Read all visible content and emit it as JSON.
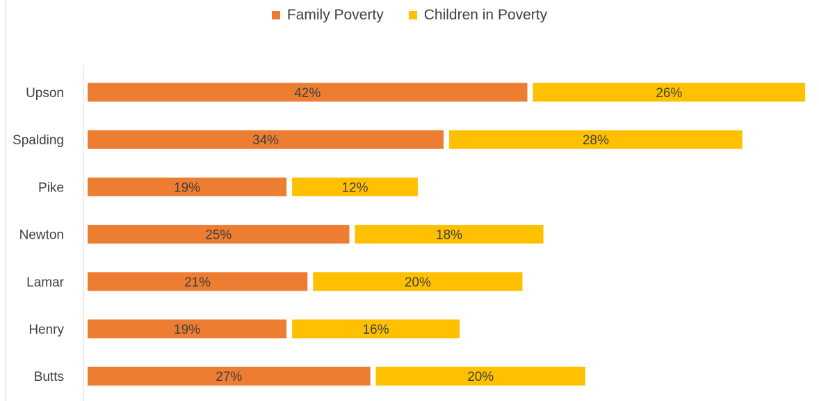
{
  "chart_data": {
    "type": "bar",
    "orientation": "horizontal",
    "stacked": true,
    "categories": [
      "Upson",
      "Spalding",
      "Pike",
      "Newton",
      "Lamar",
      "Henry",
      "Butts"
    ],
    "series": [
      {
        "name": "Family Poverty",
        "values": [
          42,
          34,
          19,
          25,
          21,
          19,
          27
        ],
        "color": "#ED7D31",
        "labels": [
          "42%",
          "34%",
          "19%",
          "25%",
          "21%",
          "19%",
          "27%"
        ]
      },
      {
        "name": "Children in Poverty",
        "values": [
          26,
          28,
          12,
          18,
          20,
          16,
          20
        ],
        "color": "#FFC000",
        "labels": [
          "26%",
          "28%",
          "12%",
          "18%",
          "20%",
          "16%",
          "20%"
        ]
      }
    ],
    "xlim": [
      0,
      68
    ],
    "legend_position": "top",
    "grid": false
  }
}
